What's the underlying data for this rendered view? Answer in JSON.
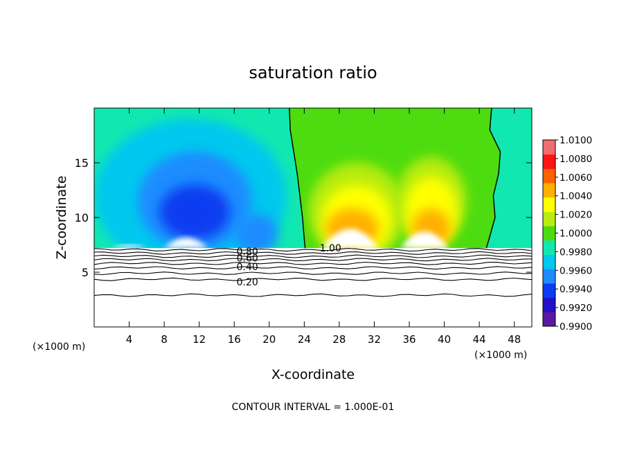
{
  "chart_data": {
    "type": "heatmap",
    "title": "saturation ratio",
    "xlabel": "X-coordinate",
    "ylabel": "Z-coordinate",
    "x_unit_left": "(×1000 m)",
    "x_unit_right": "(×1000 m)",
    "footer": "CONTOUR INTERVAL = 1.000E-01",
    "xlim": [
      0,
      50
    ],
    "ylim": [
      0,
      20
    ],
    "x_ticks": [
      4,
      8,
      12,
      16,
      20,
      24,
      28,
      32,
      36,
      40,
      44,
      48
    ],
    "y_ticks": [
      5,
      10,
      15
    ],
    "x_tick_labels": [
      "4",
      "8",
      "12",
      "16",
      "20",
      "24",
      "28",
      "32",
      "36",
      "40",
      "44",
      "48"
    ],
    "y_tick_labels": [
      "5",
      "10",
      "15"
    ],
    "colorbar": {
      "levels": [
        0.99,
        0.992,
        0.994,
        0.996,
        0.998,
        1.0,
        1.002,
        1.004,
        1.006,
        1.008,
        1.01
      ],
      "labels": [
        "0.9900",
        "0.9920",
        "0.9940",
        "0.9960",
        "0.9980",
        "1.0000",
        "1.0020",
        "1.0040",
        "1.0060",
        "1.0080",
        "1.0100"
      ],
      "colors": [
        "#5a1aa0",
        "#2410c8",
        "#0a3cf0",
        "#1e8cff",
        "#00c8ee",
        "#10e8b0",
        "#4ddc10",
        "#b8ec10",
        "#ffff00",
        "#ffb000",
        "#ff6000",
        "#ff1414",
        "#f06e6e"
      ]
    },
    "contour_labels": [
      {
        "text": "1.00",
        "x": 27,
        "y": 7.2
      },
      {
        "text": "0.80",
        "x": 17.5,
        "y": 6.9
      },
      {
        "text": "0.60",
        "x": 17.5,
        "y": 6.3
      },
      {
        "text": "0.40",
        "x": 17.5,
        "y": 5.5
      },
      {
        "text": "0.20",
        "x": 17.5,
        "y": 4.1
      }
    ],
    "contour_lines_below": [
      {
        "level": 0.9,
        "z": 7.05
      },
      {
        "level": 0.8,
        "z": 6.75
      },
      {
        "level": 0.7,
        "z": 6.45
      },
      {
        "level": 0.6,
        "z": 6.15
      },
      {
        "level": 0.5,
        "z": 5.8
      },
      {
        "level": 0.4,
        "z": 5.4
      },
      {
        "level": 0.3,
        "z": 4.9
      },
      {
        "level": 0.2,
        "z": 4.35
      },
      {
        "level": 0.1,
        "z": 2.9
      }
    ],
    "cloud_base_z": 7.2,
    "field_regions": [
      {
        "value": 0.9965,
        "x": 11,
        "z": 12,
        "rx": 11,
        "rz": 7
      },
      {
        "value": 0.9945,
        "x": 11.5,
        "z": 11.5,
        "rx": 6.5,
        "rz": 4.5
      },
      {
        "value": 0.9925,
        "x": 11.5,
        "z": 10.5,
        "rx": 4,
        "rz": 2.5
      },
      {
        "value": 0.995,
        "x": 18.5,
        "z": 8.5,
        "rx": 2.5,
        "rz": 1.8
      },
      {
        "value": 1.003,
        "x": 30,
        "z": 10.5,
        "rx": 5.5,
        "rz": 4.5
      },
      {
        "value": 1.005,
        "x": 30,
        "z": 9.8,
        "rx": 4,
        "rz": 3.2
      },
      {
        "value": 1.007,
        "x": 29.5,
        "z": 9,
        "rx": 3,
        "rz": 1.8
      },
      {
        "value": 1.003,
        "x": 38.5,
        "z": 11.5,
        "rx": 4,
        "rz": 4
      },
      {
        "value": 1.005,
        "x": 38.5,
        "z": 10.5,
        "rx": 3,
        "rz": 3.2
      },
      {
        "value": 1.007,
        "x": 38.5,
        "z": 9,
        "rx": 2.2,
        "rz": 1.8
      }
    ],
    "unity_contour_left": [
      [
        22.3,
        20
      ],
      [
        22.4,
        18
      ],
      [
        22.8,
        16
      ],
      [
        23.2,
        14
      ],
      [
        23.5,
        12
      ],
      [
        23.8,
        10
      ],
      [
        24,
        8
      ],
      [
        24.1,
        7.2
      ]
    ],
    "unity_contour_right": [
      [
        45.4,
        20
      ],
      [
        45.2,
        18
      ],
      [
        46.4,
        16
      ],
      [
        46.2,
        14
      ],
      [
        45.6,
        12
      ],
      [
        45.8,
        10
      ],
      [
        45.1,
        8
      ],
      [
        44.8,
        7.2
      ]
    ]
  }
}
